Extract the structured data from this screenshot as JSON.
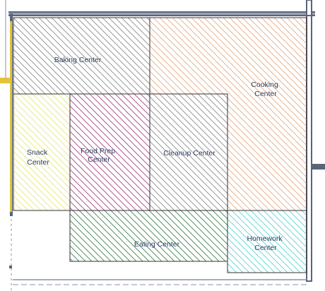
{
  "zones": [
    {
      "id": "baking",
      "label_lines": [
        "Baking Center"
      ],
      "color": "#8a8a8a"
    },
    {
      "id": "cooking",
      "label_lines": [
        "Cooking",
        "Center"
      ],
      "color": "#e3a983"
    },
    {
      "id": "snack",
      "label_lines": [
        "Snack",
        "Center"
      ],
      "color": "#e6e67a"
    },
    {
      "id": "foodprep",
      "label_lines": [
        "Food Prep",
        "Center"
      ],
      "color": "#a3447f"
    },
    {
      "id": "cleanup",
      "label_lines": [
        "Cleanup Center"
      ],
      "color": "#8a8a8a"
    },
    {
      "id": "eating",
      "label_lines": [
        "Eating Center"
      ],
      "color": "#3f7f4f"
    },
    {
      "id": "homework",
      "label_lines": [
        "Homework",
        "Center"
      ],
      "color": "#5fd3d3"
    }
  ],
  "colors": {
    "wall": "#5a6378",
    "outline": "#333333",
    "label": "#2e3f63",
    "accent": "#e0c43a"
  }
}
